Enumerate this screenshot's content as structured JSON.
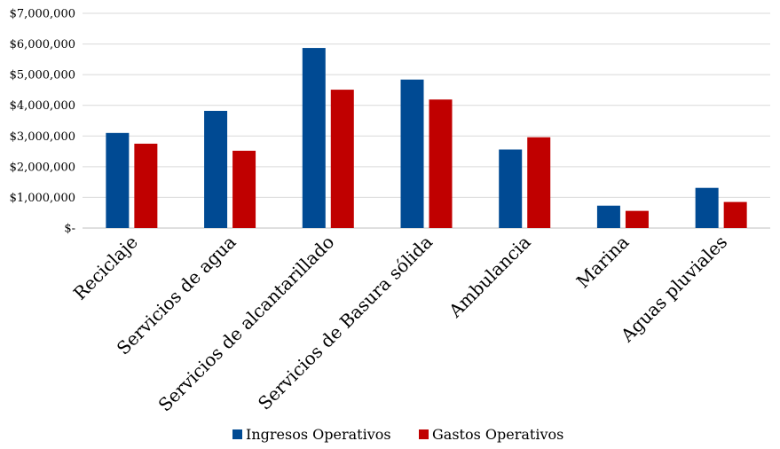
{
  "chart_data": {
    "type": "bar",
    "title": "",
    "xlabel": "",
    "ylabel": "",
    "ylim": [
      0,
      7000000
    ],
    "yticks": [
      0,
      1000000,
      2000000,
      3000000,
      4000000,
      5000000,
      6000000,
      7000000
    ],
    "ytick_labels": [
      "$-",
      "$1,000,000",
      "$2,000,000",
      "$3,000,000",
      "$4,000,000",
      "$5,000,000",
      "$6,000,000",
      "$7,000,000"
    ],
    "categories": [
      "Reciclaje",
      "Servicios de agua",
      "Servicios de alcantarillado",
      "Servicios de Basura sólida",
      "Ambulancia",
      "Marina",
      "Aguas pluviales"
    ],
    "series": [
      {
        "name": "Ingresos Operativos",
        "color": "#004a93",
        "values": [
          3100000,
          3820000,
          5870000,
          4840000,
          2560000,
          730000,
          1310000
        ]
      },
      {
        "name": "Gastos Operativos",
        "color": "#c00000",
        "values": [
          2750000,
          2520000,
          4510000,
          4190000,
          2960000,
          560000,
          850000
        ]
      }
    ],
    "grid": true,
    "legend_position": "bottom"
  }
}
